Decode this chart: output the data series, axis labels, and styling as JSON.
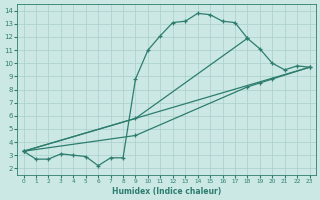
{
  "xlabel": "Humidex (Indice chaleur)",
  "line1_x": [
    0,
    1,
    2,
    3,
    4,
    5,
    6,
    7,
    8,
    9,
    10,
    11,
    12,
    13,
    14,
    15,
    16,
    17,
    18
  ],
  "line1_y": [
    3.3,
    2.7,
    2.7,
    3.1,
    3.0,
    2.9,
    2.2,
    2.8,
    2.8,
    8.8,
    11.0,
    12.1,
    13.1,
    13.2,
    13.8,
    13.7,
    13.2,
    13.1,
    11.9
  ],
  "line2_x": [
    0,
    9,
    18,
    19,
    20,
    21,
    22,
    23
  ],
  "line2_y": [
    3.3,
    5.8,
    11.9,
    11.1,
    10.0,
    9.5,
    9.8,
    9.7
  ],
  "line3_x": [
    0,
    9,
    18,
    19,
    20,
    23
  ],
  "line3_y": [
    3.3,
    4.5,
    8.2,
    8.5,
    8.8,
    9.7
  ],
  "line4_x": [
    0,
    23
  ],
  "line4_y": [
    3.3,
    9.7
  ],
  "color": "#2d7d6e",
  "bg_color": "#cce8e5",
  "grid_color": "#aacfcc",
  "ylim": [
    1.5,
    14.5
  ],
  "xlim": [
    -0.5,
    23.5
  ],
  "yticks": [
    2,
    3,
    4,
    5,
    6,
    7,
    8,
    9,
    10,
    11,
    12,
    13,
    14
  ],
  "xticks": [
    0,
    1,
    2,
    3,
    4,
    5,
    6,
    7,
    8,
    9,
    10,
    11,
    12,
    13,
    14,
    15,
    16,
    17,
    18,
    19,
    20,
    21,
    22,
    23
  ],
  "figsize": [
    3.2,
    2.0
  ],
  "dpi": 100
}
